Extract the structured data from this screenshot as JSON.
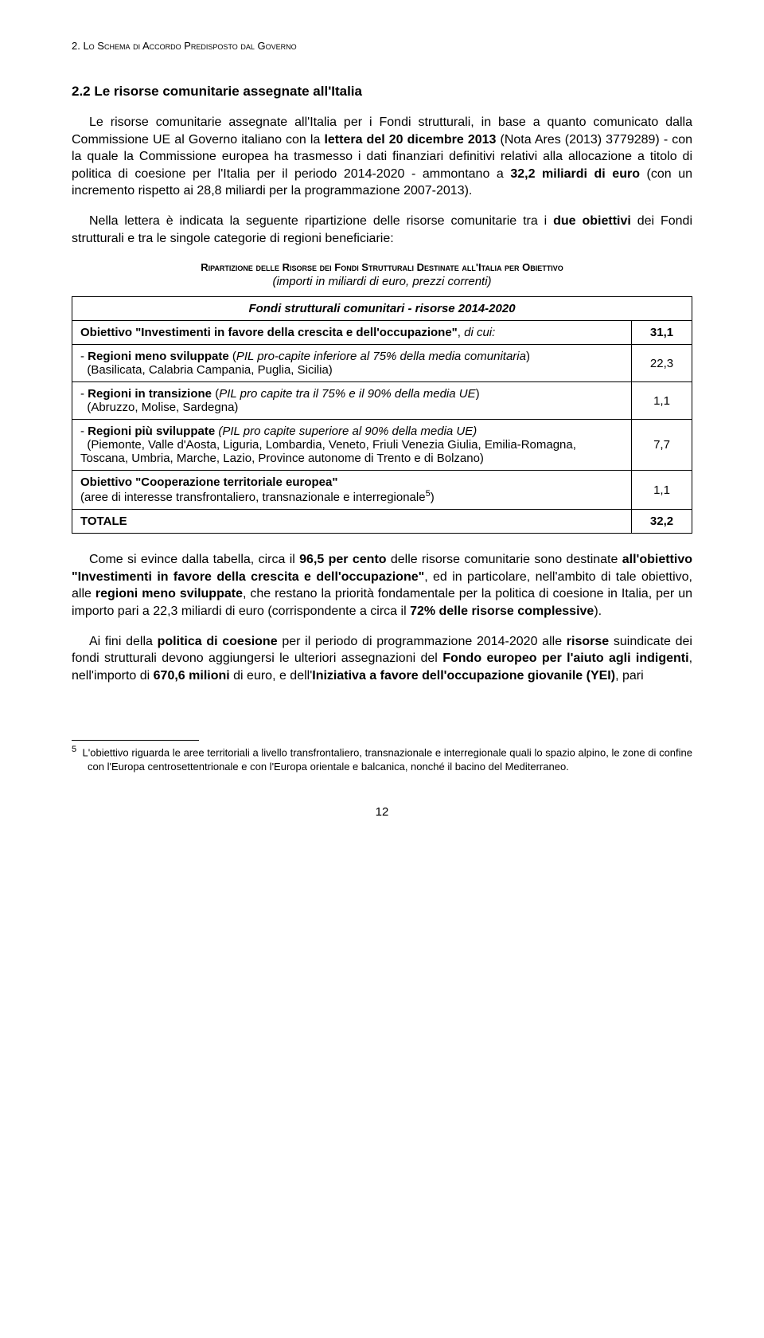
{
  "header": "2. Lo Schema di Accordo Predisposto dal Governo",
  "section_title": "2.2 Le risorse comunitarie assegnate all'Italia",
  "p1": "Le risorse comunitarie assegnate all'Italia per i Fondi strutturali, in base a quanto comunicato dalla Commissione UE al Governo italiano con la lettera del 20 dicembre 2013 (Nota Ares (2013) 3779289) - con la quale la Commissione europea ha trasmesso i dati finanziari definitivi relativi alla allocazione a titolo di politica di coesione per l'Italia per il periodo 2014-2020 - ammontano a 32,2 miliardi di euro (con un incremento rispetto ai 28,8 miliardi per la programmazione 2007-2013).",
  "p2": "Nella lettera è indicata la seguente ripartizione delle risorse comunitarie tra i due obiettivi dei Fondi strutturali e tra le singole categorie di regioni beneficiarie:",
  "table_caption": "Ripartizione delle Risorse dei Fondi Strutturali Destinate all'Italia per Obiettivo",
  "table_subcaption": "(importi in miliardi di euro, prezzi correnti)",
  "table_header": "Fondi strutturali comunitari - risorse 2014-2020",
  "rows": {
    "r0_label": "Obiettivo \"Investimenti in favore della crescita e dell'occupazione\", di cui:",
    "r0_val": "31,1",
    "r1_label": "- Regioni meno sviluppate (PIL pro-capite inferiore al 75% della media comunitaria) (Basilicata, Calabria Campania, Puglia, Sicilia)",
    "r1_val": "22,3",
    "r2_label": "- Regioni in transizione (PIL pro capite tra il 75% e il 90% della media UE) (Abruzzo, Molise, Sardegna)",
    "r2_val": "1,1",
    "r3_label": "- Regioni più sviluppate (PIL pro capite superiore al 90% della media UE) (Piemonte, Valle d'Aosta, Liguria, Lombardia, Veneto, Friuli Venezia Giulia, Emilia-Romagna, Toscana, Umbria, Marche, Lazio, Province autonome di Trento e di Bolzano)",
    "r3_val": "7,7",
    "r4_label_a": "Obiettivo \"Cooperazione territoriale europea\"",
    "r4_label_b": "(aree di interesse transfrontaliero, transnazionale e interregionale",
    "r4_label_c": ")",
    "r4_sup": "5",
    "r4_val": "1,1",
    "r5_label": "TOTALE",
    "r5_val": "32,2"
  },
  "p3": "Come si evince dalla tabella, circa il 96,5 per cento delle risorse comunitarie sono destinate all'obiettivo \"Investimenti in favore della crescita e dell'occupazione\", ed in particolare, nell'ambito di tale obiettivo, alle regioni meno sviluppate, che restano la priorità fondamentale per la politica di coesione in Italia, per un importo pari a 22,3 miliardi di euro (corrispondente a circa il 72% delle risorse complessive).",
  "p4": "Ai fini della politica di coesione per il periodo di programmazione 2014-2020 alle risorse suindicate dei fondi strutturali devono aggiungersi le ulteriori assegnazioni del Fondo europeo per l'aiuto agli indigenti, nell'importo di 670,6 milioni di euro, e dell'Iniziativa a favore dell'occupazione giovanile (YEI), pari",
  "footnote_num": "5",
  "footnote": "L'obiettivo riguarda le aree territoriali a livello transfrontaliero, transnazionale e interregionale quali lo spazio alpino, le zone di confine con l'Europa centrosettentrionale e con l'Europa orientale e balcanica, nonché il bacino del Mediterraneo.",
  "page_number": "12"
}
